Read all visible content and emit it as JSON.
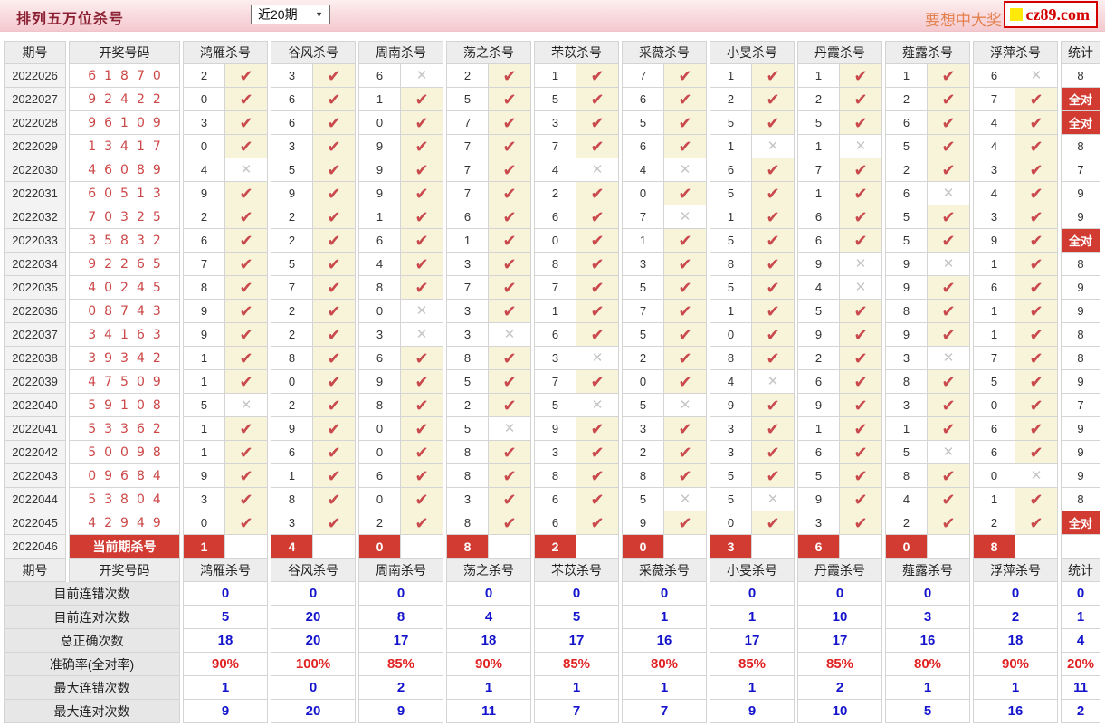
{
  "header": {
    "title": "排列五万位杀号",
    "range_select": "近20期",
    "slogan": "要想中大奖，天天彩经网",
    "logo_text": "cz89.com"
  },
  "icons": {
    "caret": "▼",
    "check": "✔",
    "cross": "✕"
  },
  "colors": {
    "accent_red": "#d23b32",
    "check_red": "#c9494d",
    "cross_gray": "#c6c6c6",
    "hit_cell_yellow": "#f8f4da",
    "summary_blue": "#1414cc",
    "summary_red": "#e02222",
    "draw_digit_red": "#cc4747"
  },
  "table": {
    "columns": [
      "期号",
      "开奖号码",
      "鸿雁杀号",
      "谷风杀号",
      "周南杀号",
      "荡之杀号",
      "芣苡杀号",
      "采薇杀号",
      "小旻杀号",
      "丹霞杀号",
      "薤露杀号",
      "浮萍杀号",
      "统计"
    ],
    "all_correct_label": "全对",
    "rows": [
      {
        "period": "2022026",
        "draw": "61870",
        "kills": [
          [
            2,
            1
          ],
          [
            3,
            1
          ],
          [
            6,
            0
          ],
          [
            2,
            1
          ],
          [
            1,
            1
          ],
          [
            7,
            1
          ],
          [
            1,
            1
          ],
          [
            1,
            1
          ],
          [
            1,
            1
          ],
          [
            6,
            0
          ]
        ],
        "stat": "8"
      },
      {
        "period": "2022027",
        "draw": "92422",
        "kills": [
          [
            0,
            1
          ],
          [
            6,
            1
          ],
          [
            1,
            1
          ],
          [
            5,
            1
          ],
          [
            5,
            1
          ],
          [
            6,
            1
          ],
          [
            2,
            1
          ],
          [
            2,
            1
          ],
          [
            2,
            1
          ],
          [
            7,
            1
          ]
        ],
        "stat": "全对"
      },
      {
        "period": "2022028",
        "draw": "96109",
        "kills": [
          [
            3,
            1
          ],
          [
            6,
            1
          ],
          [
            0,
            1
          ],
          [
            7,
            1
          ],
          [
            3,
            1
          ],
          [
            5,
            1
          ],
          [
            5,
            1
          ],
          [
            5,
            1
          ],
          [
            6,
            1
          ],
          [
            4,
            1
          ]
        ],
        "stat": "全对"
      },
      {
        "period": "2022029",
        "draw": "13417",
        "kills": [
          [
            0,
            1
          ],
          [
            3,
            1
          ],
          [
            9,
            1
          ],
          [
            7,
            1
          ],
          [
            7,
            1
          ],
          [
            6,
            1
          ],
          [
            1,
            0
          ],
          [
            1,
            0
          ],
          [
            5,
            1
          ],
          [
            4,
            1
          ]
        ],
        "stat": "8"
      },
      {
        "period": "2022030",
        "draw": "46089",
        "kills": [
          [
            4,
            0
          ],
          [
            5,
            1
          ],
          [
            9,
            1
          ],
          [
            7,
            1
          ],
          [
            4,
            0
          ],
          [
            4,
            0
          ],
          [
            6,
            1
          ],
          [
            7,
            1
          ],
          [
            2,
            1
          ],
          [
            3,
            1
          ]
        ],
        "stat": "7"
      },
      {
        "period": "2022031",
        "draw": "60513",
        "kills": [
          [
            9,
            1
          ],
          [
            9,
            1
          ],
          [
            9,
            1
          ],
          [
            7,
            1
          ],
          [
            2,
            1
          ],
          [
            0,
            1
          ],
          [
            5,
            1
          ],
          [
            1,
            1
          ],
          [
            6,
            0
          ],
          [
            4,
            1
          ]
        ],
        "stat": "9"
      },
      {
        "period": "2022032",
        "draw": "70325",
        "kills": [
          [
            2,
            1
          ],
          [
            2,
            1
          ],
          [
            1,
            1
          ],
          [
            6,
            1
          ],
          [
            6,
            1
          ],
          [
            7,
            0
          ],
          [
            1,
            1
          ],
          [
            6,
            1
          ],
          [
            5,
            1
          ],
          [
            3,
            1
          ]
        ],
        "stat": "9"
      },
      {
        "period": "2022033",
        "draw": "35832",
        "kills": [
          [
            6,
            1
          ],
          [
            2,
            1
          ],
          [
            6,
            1
          ],
          [
            1,
            1
          ],
          [
            0,
            1
          ],
          [
            1,
            1
          ],
          [
            5,
            1
          ],
          [
            6,
            1
          ],
          [
            5,
            1
          ],
          [
            9,
            1
          ]
        ],
        "stat": "全对"
      },
      {
        "period": "2022034",
        "draw": "92265",
        "kills": [
          [
            7,
            1
          ],
          [
            5,
            1
          ],
          [
            4,
            1
          ],
          [
            3,
            1
          ],
          [
            8,
            1
          ],
          [
            3,
            1
          ],
          [
            8,
            1
          ],
          [
            9,
            0
          ],
          [
            9,
            0
          ],
          [
            1,
            1
          ]
        ],
        "stat": "8"
      },
      {
        "period": "2022035",
        "draw": "40245",
        "kills": [
          [
            8,
            1
          ],
          [
            7,
            1
          ],
          [
            8,
            1
          ],
          [
            7,
            1
          ],
          [
            7,
            1
          ],
          [
            5,
            1
          ],
          [
            5,
            1
          ],
          [
            4,
            0
          ],
          [
            9,
            1
          ],
          [
            6,
            1
          ]
        ],
        "stat": "9"
      },
      {
        "period": "2022036",
        "draw": "08743",
        "kills": [
          [
            9,
            1
          ],
          [
            2,
            1
          ],
          [
            0,
            0
          ],
          [
            3,
            1
          ],
          [
            1,
            1
          ],
          [
            7,
            1
          ],
          [
            1,
            1
          ],
          [
            5,
            1
          ],
          [
            8,
            1
          ],
          [
            1,
            1
          ]
        ],
        "stat": "9"
      },
      {
        "period": "2022037",
        "draw": "34163",
        "kills": [
          [
            9,
            1
          ],
          [
            2,
            1
          ],
          [
            3,
            0
          ],
          [
            3,
            0
          ],
          [
            6,
            1
          ],
          [
            5,
            1
          ],
          [
            0,
            1
          ],
          [
            9,
            1
          ],
          [
            9,
            1
          ],
          [
            1,
            1
          ]
        ],
        "stat": "8"
      },
      {
        "period": "2022038",
        "draw": "39342",
        "kills": [
          [
            1,
            1
          ],
          [
            8,
            1
          ],
          [
            6,
            1
          ],
          [
            8,
            1
          ],
          [
            3,
            0
          ],
          [
            2,
            1
          ],
          [
            8,
            1
          ],
          [
            2,
            1
          ],
          [
            3,
            0
          ],
          [
            7,
            1
          ]
        ],
        "stat": "8"
      },
      {
        "period": "2022039",
        "draw": "47509",
        "kills": [
          [
            1,
            1
          ],
          [
            0,
            1
          ],
          [
            9,
            1
          ],
          [
            5,
            1
          ],
          [
            7,
            1
          ],
          [
            0,
            1
          ],
          [
            4,
            0
          ],
          [
            6,
            1
          ],
          [
            8,
            1
          ],
          [
            5,
            1
          ]
        ],
        "stat": "9"
      },
      {
        "period": "2022040",
        "draw": "59108",
        "kills": [
          [
            5,
            0
          ],
          [
            2,
            1
          ],
          [
            8,
            1
          ],
          [
            2,
            1
          ],
          [
            5,
            0
          ],
          [
            5,
            0
          ],
          [
            9,
            1
          ],
          [
            9,
            1
          ],
          [
            3,
            1
          ],
          [
            0,
            1
          ]
        ],
        "stat": "7"
      },
      {
        "period": "2022041",
        "draw": "53362",
        "kills": [
          [
            1,
            1
          ],
          [
            9,
            1
          ],
          [
            0,
            1
          ],
          [
            5,
            0
          ],
          [
            9,
            1
          ],
          [
            3,
            1
          ],
          [
            3,
            1
          ],
          [
            1,
            1
          ],
          [
            1,
            1
          ],
          [
            6,
            1
          ]
        ],
        "stat": "9"
      },
      {
        "period": "2022042",
        "draw": "50098",
        "kills": [
          [
            1,
            1
          ],
          [
            6,
            1
          ],
          [
            0,
            1
          ],
          [
            8,
            1
          ],
          [
            3,
            1
          ],
          [
            2,
            1
          ],
          [
            3,
            1
          ],
          [
            6,
            1
          ],
          [
            5,
            0
          ],
          [
            6,
            1
          ]
        ],
        "stat": "9"
      },
      {
        "period": "2022043",
        "draw": "09684",
        "kills": [
          [
            9,
            1
          ],
          [
            1,
            1
          ],
          [
            6,
            1
          ],
          [
            8,
            1
          ],
          [
            8,
            1
          ],
          [
            8,
            1
          ],
          [
            5,
            1
          ],
          [
            5,
            1
          ],
          [
            8,
            1
          ],
          [
            0,
            0
          ]
        ],
        "stat": "9"
      },
      {
        "period": "2022044",
        "draw": "53804",
        "kills": [
          [
            3,
            1
          ],
          [
            8,
            1
          ],
          [
            0,
            1
          ],
          [
            3,
            1
          ],
          [
            6,
            1
          ],
          [
            5,
            0
          ],
          [
            5,
            0
          ],
          [
            9,
            1
          ],
          [
            4,
            1
          ],
          [
            1,
            1
          ]
        ],
        "stat": "8"
      },
      {
        "period": "2022045",
        "draw": "42949",
        "kills": [
          [
            0,
            1
          ],
          [
            3,
            1
          ],
          [
            2,
            1
          ],
          [
            8,
            1
          ],
          [
            6,
            1
          ],
          [
            9,
            1
          ],
          [
            0,
            1
          ],
          [
            3,
            1
          ],
          [
            2,
            1
          ],
          [
            2,
            1
          ]
        ],
        "stat": "全对"
      }
    ],
    "current_row": {
      "period": "2022046",
      "label": "当前期杀号",
      "kills": [
        "1",
        "4",
        "0",
        "8",
        "2",
        "0",
        "3",
        "6",
        "0",
        "8"
      ],
      "stat": ""
    },
    "summary": [
      {
        "label": "目前连错次数",
        "values": [
          "0",
          "0",
          "0",
          "0",
          "0",
          "0",
          "0",
          "0",
          "0",
          "0"
        ],
        "stat": "0",
        "red": false
      },
      {
        "label": "目前连对次数",
        "values": [
          "5",
          "20",
          "8",
          "4",
          "5",
          "1",
          "1",
          "10",
          "3",
          "2"
        ],
        "stat": "1",
        "red": false
      },
      {
        "label": "总正确次数",
        "values": [
          "18",
          "20",
          "17",
          "18",
          "17",
          "16",
          "17",
          "17",
          "16",
          "18"
        ],
        "stat": "4",
        "red": false
      },
      {
        "label": "准确率(全对率)",
        "values": [
          "90%",
          "100%",
          "85%",
          "90%",
          "85%",
          "80%",
          "85%",
          "85%",
          "80%",
          "90%"
        ],
        "stat": "20%",
        "red": true
      },
      {
        "label": "最大连错次数",
        "values": [
          "1",
          "0",
          "2",
          "1",
          "1",
          "1",
          "1",
          "2",
          "1",
          "1"
        ],
        "stat": "11",
        "red": false
      },
      {
        "label": "最大连对次数",
        "values": [
          "9",
          "20",
          "9",
          "11",
          "7",
          "7",
          "9",
          "10",
          "5",
          "16"
        ],
        "stat": "2",
        "red": false
      }
    ]
  }
}
